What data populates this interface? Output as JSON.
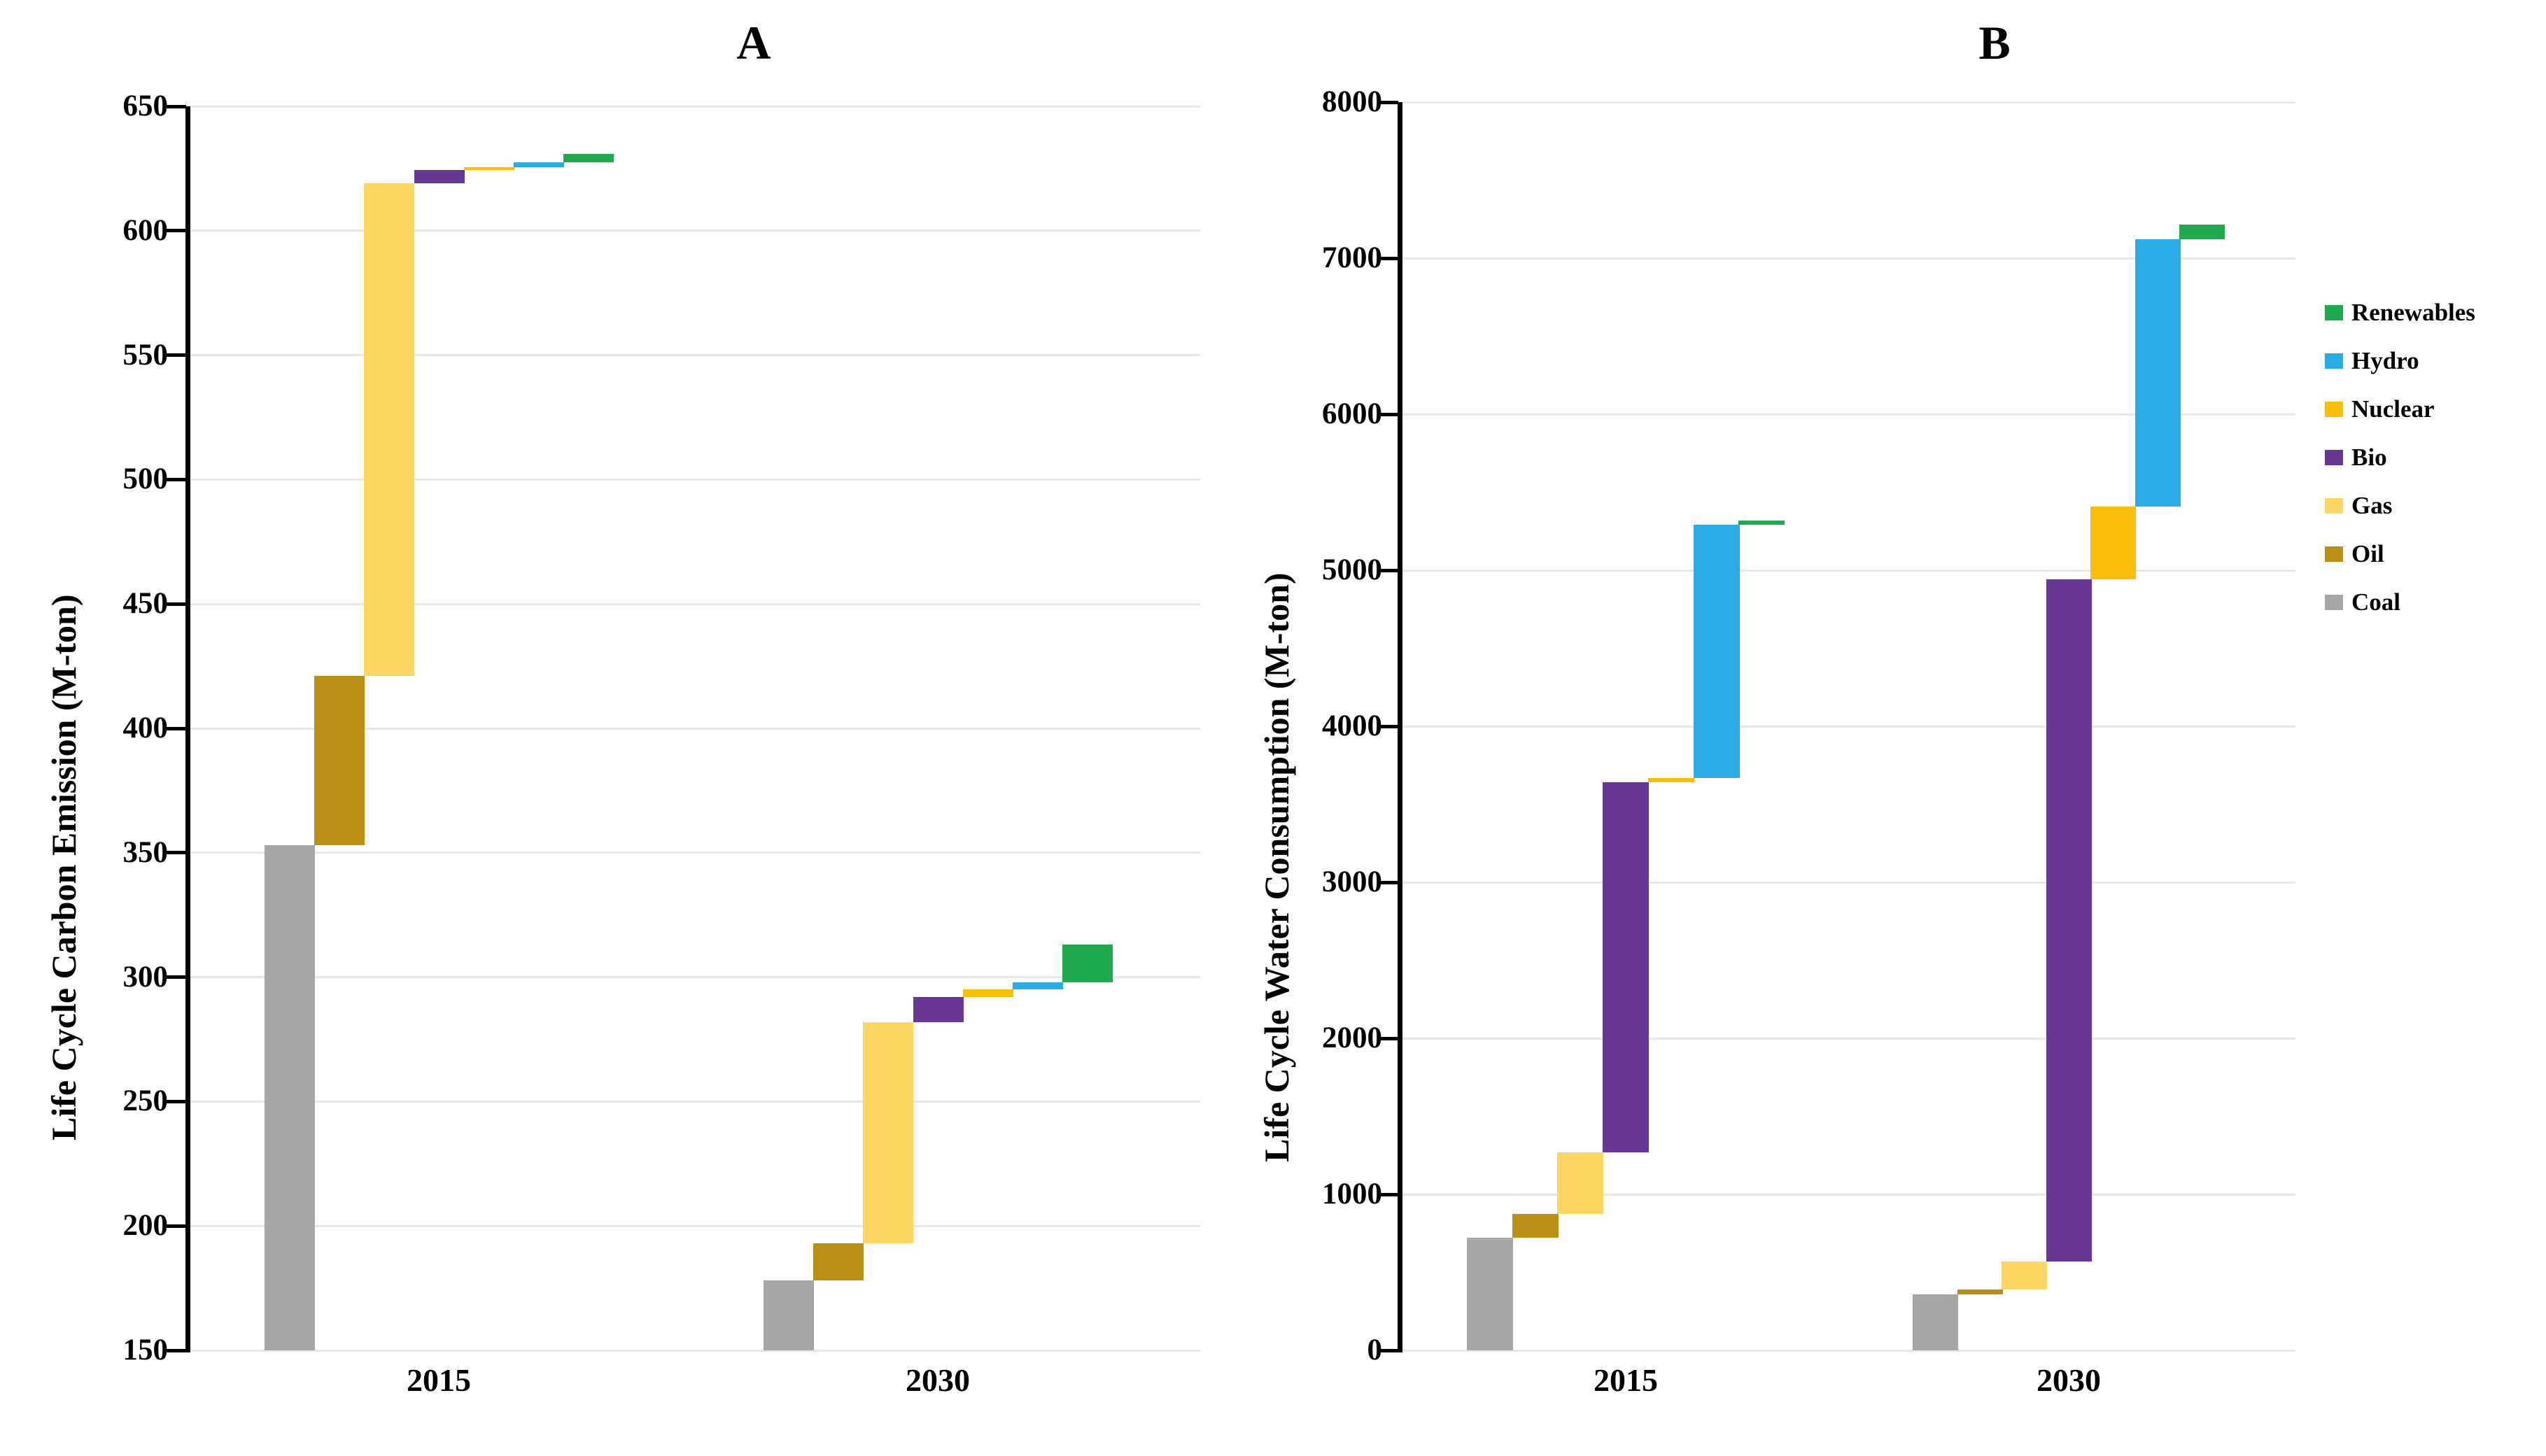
{
  "figure": {
    "panel_a_title": "A",
    "panel_b_title": "B",
    "x_category_labels": [
      "2015",
      "2030"
    ]
  },
  "chart_data": [
    {
      "type": "bar",
      "variant": "waterfall",
      "title": "A",
      "ylabel": "Life Cycle Carbon Emission (M-ton)",
      "xlabel": "",
      "ylim": [
        150,
        650
      ],
      "yticks": [
        150,
        200,
        250,
        300,
        350,
        400,
        450,
        500,
        550,
        600,
        650
      ],
      "categories": [
        "2015",
        "2030"
      ],
      "stack_order": [
        "Coal",
        "Oil",
        "Gas",
        "Bio",
        "Nuclear",
        "Hydro",
        "Renewables"
      ],
      "grid": true,
      "series": [
        {
          "name": "Coal",
          "color": "#A6A6A6",
          "ranges": {
            "2015": [
              150,
              353
            ],
            "2030": [
              150,
              178
            ]
          }
        },
        {
          "name": "Oil",
          "color": "#B99014",
          "ranges": {
            "2015": [
              353,
              421
            ],
            "2030": [
              178,
              193
            ]
          }
        },
        {
          "name": "Gas",
          "color": "#FCD765",
          "ranges": {
            "2015": [
              421,
              619
            ],
            "2030": [
              193,
              282
            ]
          }
        },
        {
          "name": "Bio",
          "color": "#663893",
          "ranges": {
            "2015": [
              619,
              624.5
            ],
            "2030": [
              282,
              292
            ]
          }
        },
        {
          "name": "Nuclear",
          "color": "#F9BE0B",
          "ranges": {
            "2015": [
              624.5,
              625.5
            ],
            "2030": [
              292,
              295
            ]
          }
        },
        {
          "name": "Hydro",
          "color": "#29ACE3",
          "ranges": {
            "2015": [
              625.5,
              627.5
            ],
            "2030": [
              295,
              298
            ]
          }
        },
        {
          "name": "Renewables",
          "color": "#21A94D",
          "ranges": {
            "2015": [
              627.5,
              631
            ],
            "2030": [
              298,
              313
            ]
          }
        }
      ],
      "totals": {
        "2015": 631,
        "2030": 313
      }
    },
    {
      "type": "bar",
      "variant": "waterfall",
      "title": "B",
      "ylabel": "Life Cycle Water Consumption (M-ton)",
      "xlabel": "",
      "ylim": [
        0,
        8000
      ],
      "yticks": [
        0,
        1000,
        2000,
        3000,
        4000,
        5000,
        6000,
        7000,
        8000
      ],
      "categories": [
        "2015",
        "2030"
      ],
      "stack_order": [
        "Coal",
        "Oil",
        "Gas",
        "Bio",
        "Nuclear",
        "Hydro",
        "Renewables"
      ],
      "grid": true,
      "series": [
        {
          "name": "Coal",
          "color": "#A6A6A6",
          "ranges": {
            "2015": [
              0,
              720
            ],
            "2030": [
              0,
              360
            ]
          }
        },
        {
          "name": "Oil",
          "color": "#B99014",
          "ranges": {
            "2015": [
              720,
              875
            ],
            "2030": [
              360,
              390
            ]
          }
        },
        {
          "name": "Gas",
          "color": "#FCD765",
          "ranges": {
            "2015": [
              875,
              1270
            ],
            "2030": [
              390,
              570
            ]
          }
        },
        {
          "name": "Bio",
          "color": "#663893",
          "ranges": {
            "2015": [
              1270,
              3640
            ],
            "2030": [
              570,
              4940
            ]
          }
        },
        {
          "name": "Nuclear",
          "color": "#F9BE0B",
          "ranges": {
            "2015": [
              3640,
              3670
            ],
            "2030": [
              4940,
              5410
            ]
          }
        },
        {
          "name": "Hydro",
          "color": "#29ACE3",
          "ranges": {
            "2015": [
              3670,
              5290
            ],
            "2030": [
              5410,
              7120
            ]
          }
        },
        {
          "name": "Renewables",
          "color": "#21A94D",
          "ranges": {
            "2015": [
              5290,
              5320
            ],
            "2030": [
              7120,
              7215
            ]
          }
        }
      ],
      "totals": {
        "2015": 5320,
        "2030": 7215
      }
    }
  ],
  "legend": {
    "items": [
      {
        "label": "Renewables",
        "color": "#21A94D"
      },
      {
        "label": "Hydro",
        "color": "#29ACE3"
      },
      {
        "label": "Nuclear",
        "color": "#F9BE0B"
      },
      {
        "label": "Bio",
        "color": "#663893"
      },
      {
        "label": "Gas",
        "color": "#FCD765"
      },
      {
        "label": "Oil",
        "color": "#B99014"
      },
      {
        "label": "Coal",
        "color": "#A6A6A6"
      }
    ]
  }
}
